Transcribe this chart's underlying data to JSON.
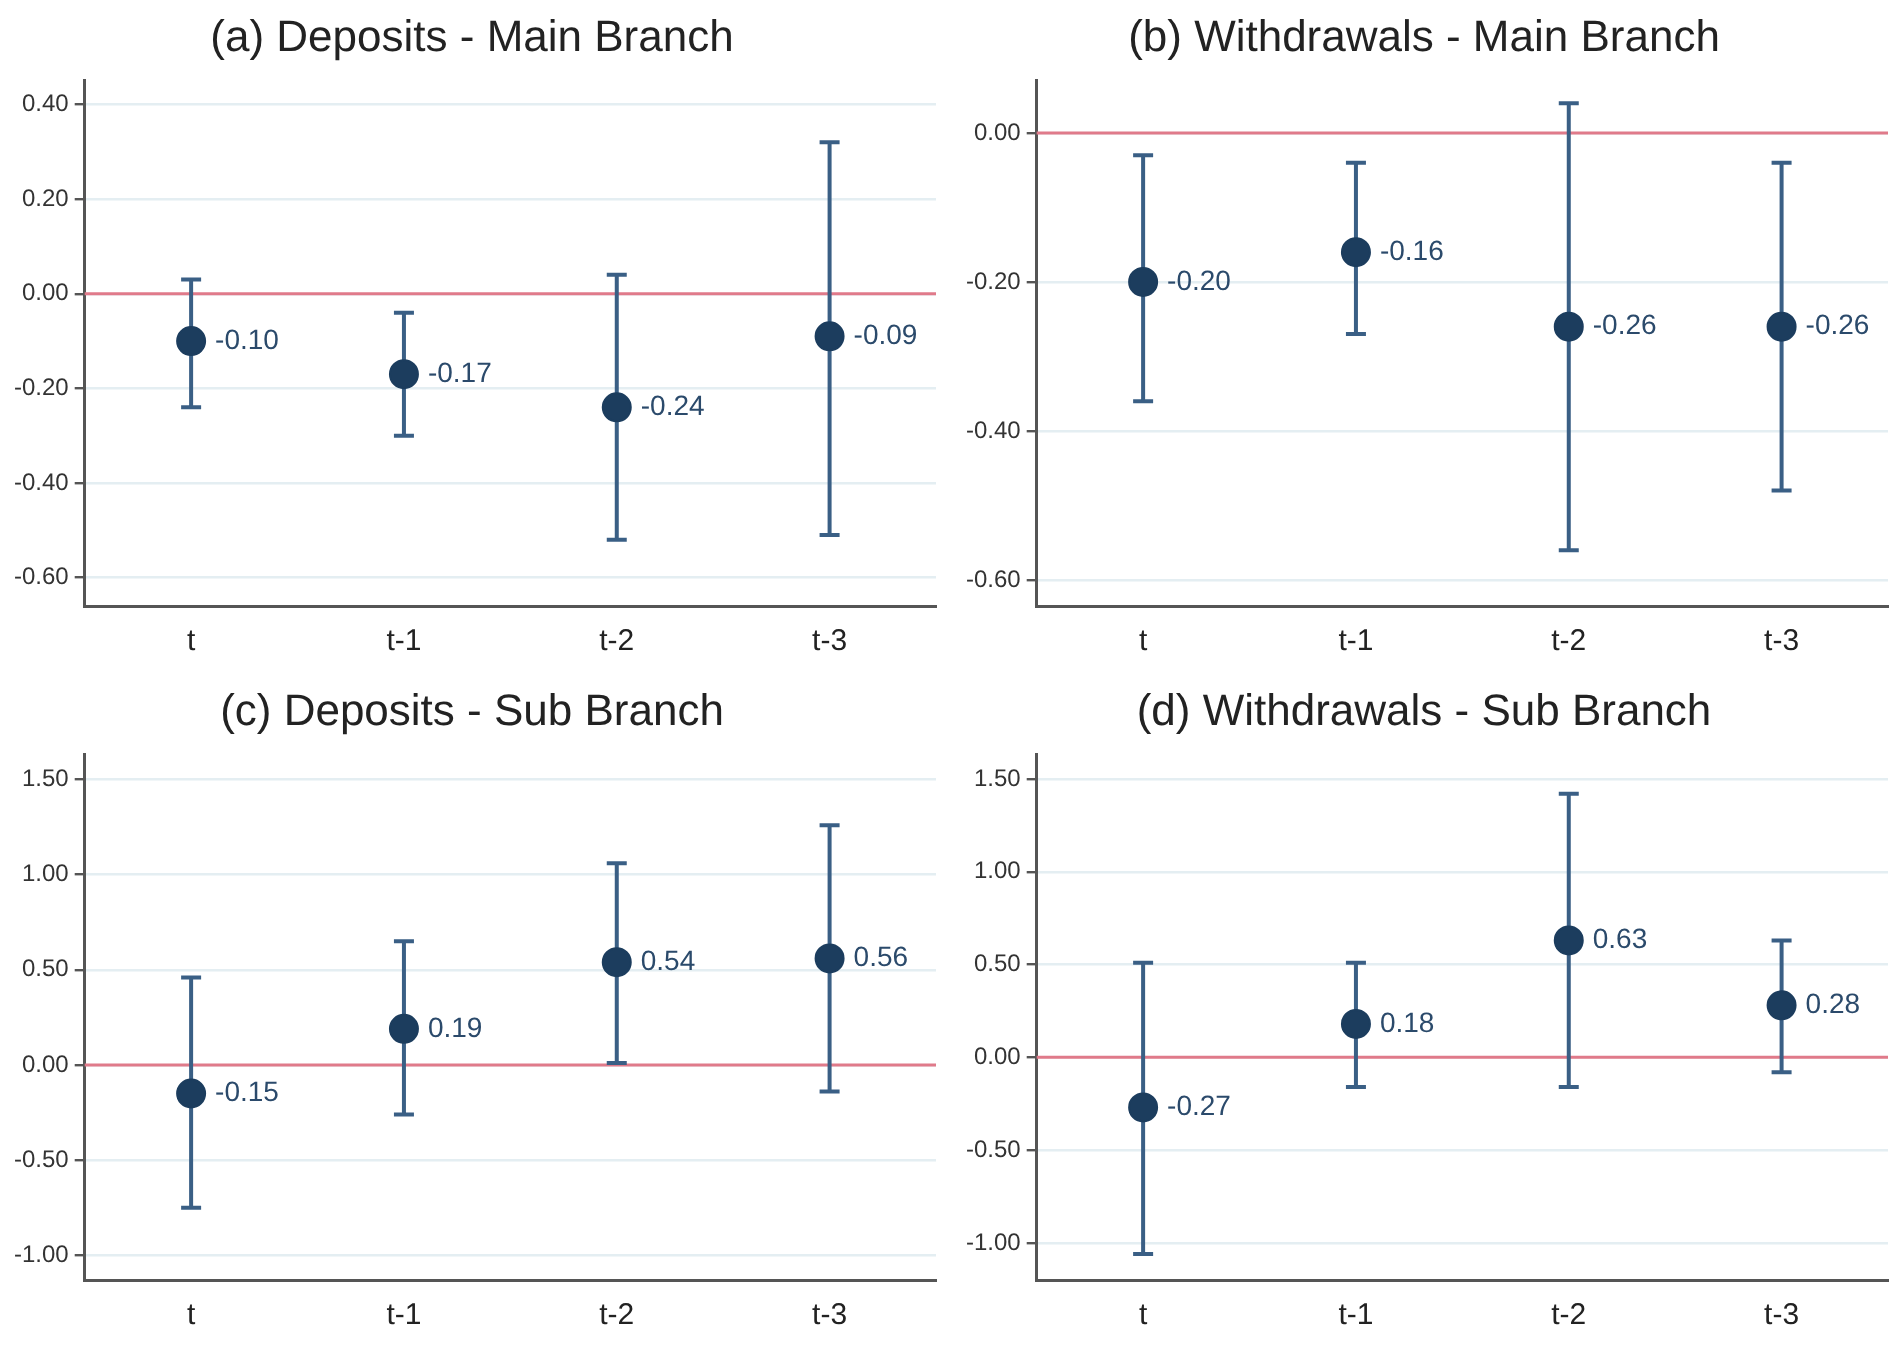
{
  "chart_data": [
    {
      "type": "scatter",
      "title": "(a) Deposits - Main Branch",
      "categories": [
        "t",
        "t-1",
        "t-2",
        "t-3"
      ],
      "values": [
        -0.1,
        -0.17,
        -0.24,
        -0.09
      ],
      "value_labels": [
        "-0.10",
        "-0.17",
        "-0.24",
        "-0.09"
      ],
      "errors": [
        [
          -0.24,
          0.03
        ],
        [
          -0.3,
          -0.04
        ],
        [
          -0.52,
          0.04
        ],
        [
          -0.51,
          0.32
        ]
      ],
      "color": "#1c3d5e",
      "marker": "circle",
      "grid": "y",
      "ylim": [
        -0.66,
        0.45
      ],
      "yticks": [
        {
          "value": -0.6,
          "label": "-0.60"
        },
        {
          "value": -0.4,
          "label": "-0.40"
        },
        {
          "value": -0.2,
          "label": "-0.20"
        },
        {
          "value": 0,
          "label": "0.00"
        },
        {
          "value": 0.2,
          "label": "0.20"
        },
        {
          "value": 0.4,
          "label": "0.40"
        }
      ],
      "ref_lines": [
        {
          "axis": "y",
          "value": 0,
          "color": "#e07a8a"
        }
      ]
    },
    {
      "type": "scatter",
      "title": "(b) Withdrawals - Main Branch",
      "categories": [
        "t",
        "t-1",
        "t-2",
        "t-3"
      ],
      "values": [
        -0.2,
        -0.16,
        -0.26,
        -0.26
      ],
      "value_labels": [
        "-0.20",
        "-0.16",
        "-0.26",
        "-0.26"
      ],
      "errors": [
        [
          -0.36,
          -0.03
        ],
        [
          -0.27,
          -0.04
        ],
        [
          -0.56,
          0.04
        ],
        [
          -0.48,
          -0.04
        ]
      ],
      "color": "#1c3d5e",
      "marker": "circle",
      "grid": "y",
      "ylim": [
        -0.635,
        0.07
      ],
      "yticks": [
        {
          "value": -0.6,
          "label": "-0.60"
        },
        {
          "value": -0.4,
          "label": "-0.40"
        },
        {
          "value": -0.2,
          "label": "-0.20"
        },
        {
          "value": 0,
          "label": "0.00"
        }
      ],
      "ref_lines": [
        {
          "axis": "y",
          "value": 0,
          "color": "#e07a8a"
        }
      ]
    },
    {
      "type": "scatter",
      "title": "(c) Deposits - Sub Branch",
      "categories": [
        "t",
        "t-1",
        "t-2",
        "t-3"
      ],
      "values": [
        -0.15,
        0.19,
        0.54,
        0.56
      ],
      "value_labels": [
        "-0.15",
        "0.19",
        "0.54",
        "0.56"
      ],
      "errors": [
        [
          -0.75,
          0.46
        ],
        [
          -0.26,
          0.65
        ],
        [
          0.01,
          1.06
        ],
        [
          -0.14,
          1.26
        ]
      ],
      "color": "#1c3d5e",
      "marker": "circle",
      "grid": "y",
      "ylim": [
        -1.13,
        1.63
      ],
      "yticks": [
        {
          "value": -1,
          "label": "-1.00"
        },
        {
          "value": -0.5,
          "label": "-0.50"
        },
        {
          "value": 0,
          "label": "0.00"
        },
        {
          "value": 0.5,
          "label": "0.50"
        },
        {
          "value": 1,
          "label": "1.00"
        },
        {
          "value": 1.5,
          "label": "1.50"
        }
      ],
      "ref_lines": [
        {
          "axis": "y",
          "value": 0,
          "color": "#e07a8a"
        }
      ]
    },
    {
      "type": "scatter",
      "title": "(d) Withdrawals - Sub Branch",
      "categories": [
        "t",
        "t-1",
        "t-2",
        "t-3"
      ],
      "values": [
        -0.27,
        0.18,
        0.63,
        0.28
      ],
      "value_labels": [
        "-0.27",
        "0.18",
        "0.63",
        "0.28"
      ],
      "errors": [
        [
          -1.06,
          0.51
        ],
        [
          -0.16,
          0.51
        ],
        [
          -0.16,
          1.42
        ],
        [
          -0.08,
          0.63
        ]
      ],
      "color": "#1c3d5e",
      "marker": "circle",
      "grid": "y",
      "ylim": [
        -1.2,
        1.63
      ],
      "yticks": [
        {
          "value": -1,
          "label": "-1.00"
        },
        {
          "value": -0.5,
          "label": "-0.50"
        },
        {
          "value": 0,
          "label": "0.00"
        },
        {
          "value": 0.5,
          "label": "0.50"
        },
        {
          "value": 1,
          "label": "1.00"
        },
        {
          "value": 1.5,
          "label": "1.50"
        }
      ],
      "ref_lines": [
        {
          "axis": "y",
          "value": 0,
          "color": "#e07a8a"
        }
      ]
    }
  ]
}
